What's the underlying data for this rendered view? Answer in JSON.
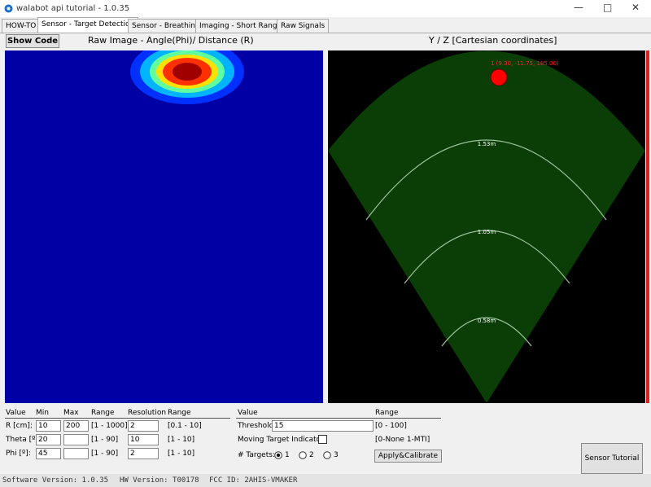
{
  "window": {
    "title": "walabot api tutorial - 1.0.35"
  },
  "tabs": [
    "HOW-TO",
    "Sensor - Target Detection",
    "Sensor - Breathing",
    "Imaging - Short Range",
    "Raw Signals"
  ],
  "show_code": "Show Code",
  "raw_image": {
    "title": "Raw Image - Angle(Phi)/ Distance (R)"
  },
  "cartesian": {
    "title": "Y / Z [Cartesian coordinates]",
    "arcs": [
      "1.53m",
      "1.05m",
      "0.58m"
    ],
    "target": "1 (9.30, -11.75, 185.00)"
  },
  "arena": {
    "headers": [
      "Value",
      "Min",
      "Max",
      "Range",
      "Resolution",
      "Range"
    ],
    "rows": [
      {
        "label": "R [cm]:",
        "min": "10",
        "max": "200",
        "range": "[1 - 1000]",
        "resolution": "2",
        "res_range": "[0.1 - 10]"
      },
      {
        "label": "Theta [º]:",
        "min": "20",
        "range": "[1 - 90]",
        "resolution": "10",
        "res_range": "[1 - 10]"
      },
      {
        "label": "Phi [º]:",
        "min": "45",
        "range": "[1 - 90]",
        "resolution": "2",
        "res_range": "[1 - 10]"
      }
    ]
  },
  "detection": {
    "headers": [
      "Value",
      "Range"
    ],
    "threshold_label": "Threshold:",
    "threshold": "15",
    "threshold_range": "[0 - 100]",
    "mti_label": "Moving Target Indicator:",
    "mti_range": "[0-None 1-MTI]",
    "targets_label": "# Targets:",
    "targets": [
      "1",
      "2",
      "3"
    ],
    "apply": "Apply&Calibrate"
  },
  "sensor_tutorial": "Sensor Tutorial",
  "status": [
    "Software Version: 1.0.35",
    "HW Version: T00178",
    "FCC ID: 2AHIS-VMAKER"
  ]
}
